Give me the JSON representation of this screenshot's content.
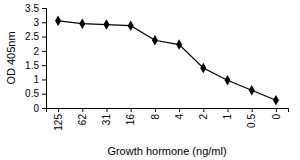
{
  "chart_data": {
    "type": "line",
    "x_label": "Growth hormone (ng/ml)",
    "y_label": "OD 405nm",
    "categories": [
      "125",
      "62",
      "31",
      "16",
      "8",
      "4",
      "2",
      "1",
      "0.5",
      "0"
    ],
    "values": [
      3.05,
      2.95,
      2.92,
      2.88,
      2.37,
      2.22,
      1.4,
      0.97,
      0.62,
      0.27
    ],
    "color": "#000000",
    "marker": "diamond",
    "ylim": [
      0,
      3.5
    ],
    "yticks": [
      0,
      0.5,
      1,
      1.5,
      2,
      2.5,
      3,
      3.5
    ],
    "grid": false
  }
}
